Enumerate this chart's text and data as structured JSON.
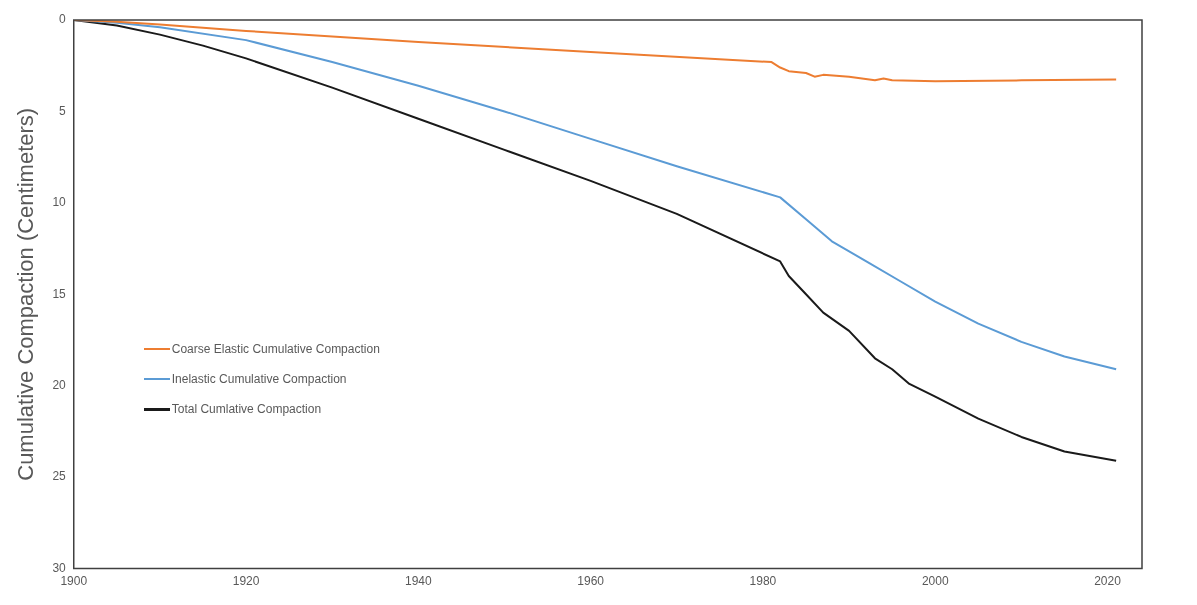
{
  "chart_data": {
    "type": "line",
    "ylabel": "Cumulative Compaction (Centimeters)",
    "xlim": [
      1900,
      2024
    ],
    "xticks": [
      1900,
      1920,
      1940,
      1960,
      1980,
      2000,
      2020
    ],
    "ylim": [
      30,
      0
    ],
    "yticks": [
      0,
      5,
      10,
      15,
      20,
      25,
      30
    ],
    "grid": false,
    "legend": "left",
    "marker": "none",
    "line_style": "solid",
    "series": [
      {
        "name": "Coarse Elastic Cumulative Compaction",
        "color": "#ed7d31",
        "x": [
          1900,
          1905,
          1910,
          1920,
          1940,
          1960,
          1981,
          1982,
          1983,
          1985,
          1986,
          1987,
          1990,
          1993,
          1994,
          1995,
          2000,
          2010,
          2021
        ],
        "values": [
          0,
          0.1,
          0.25,
          0.6,
          1.2,
          1.75,
          2.3,
          2.6,
          2.8,
          2.9,
          3.1,
          3.0,
          3.1,
          3.3,
          3.2,
          3.3,
          3.35,
          3.3,
          3.25
        ]
      },
      {
        "name": "Inelastic Cumulative Compaction",
        "color": "#5b9bd5",
        "x": [
          1900,
          1905,
          1910,
          1920,
          1930,
          1940,
          1950,
          1960,
          1970,
          1982,
          1985,
          1988,
          1992,
          1996,
          2000,
          2005,
          2010,
          2015,
          2021
        ],
        "values": [
          0,
          0.15,
          0.4,
          1.1,
          2.3,
          3.6,
          5.0,
          6.5,
          8.0,
          9.7,
          10.9,
          12.1,
          13.2,
          14.3,
          15.4,
          16.6,
          17.6,
          18.4,
          19.1
        ]
      },
      {
        "name": "Total Cumlative Compaction",
        "color": "#1a1a1a",
        "x": [
          1900,
          1905,
          1910,
          1915,
          1920,
          1930,
          1940,
          1950,
          1960,
          1970,
          1982,
          1983,
          1985,
          1987,
          1990,
          1993,
          1995,
          1997,
          2000,
          2005,
          2010,
          2015,
          2021
        ],
        "values": [
          0,
          0.3,
          0.8,
          1.4,
          2.1,
          3.7,
          5.4,
          7.1,
          8.8,
          10.6,
          13.2,
          14.0,
          15.0,
          16.0,
          17.0,
          18.5,
          19.1,
          19.9,
          20.6,
          21.8,
          22.8,
          23.6,
          24.1
        ]
      }
    ]
  }
}
